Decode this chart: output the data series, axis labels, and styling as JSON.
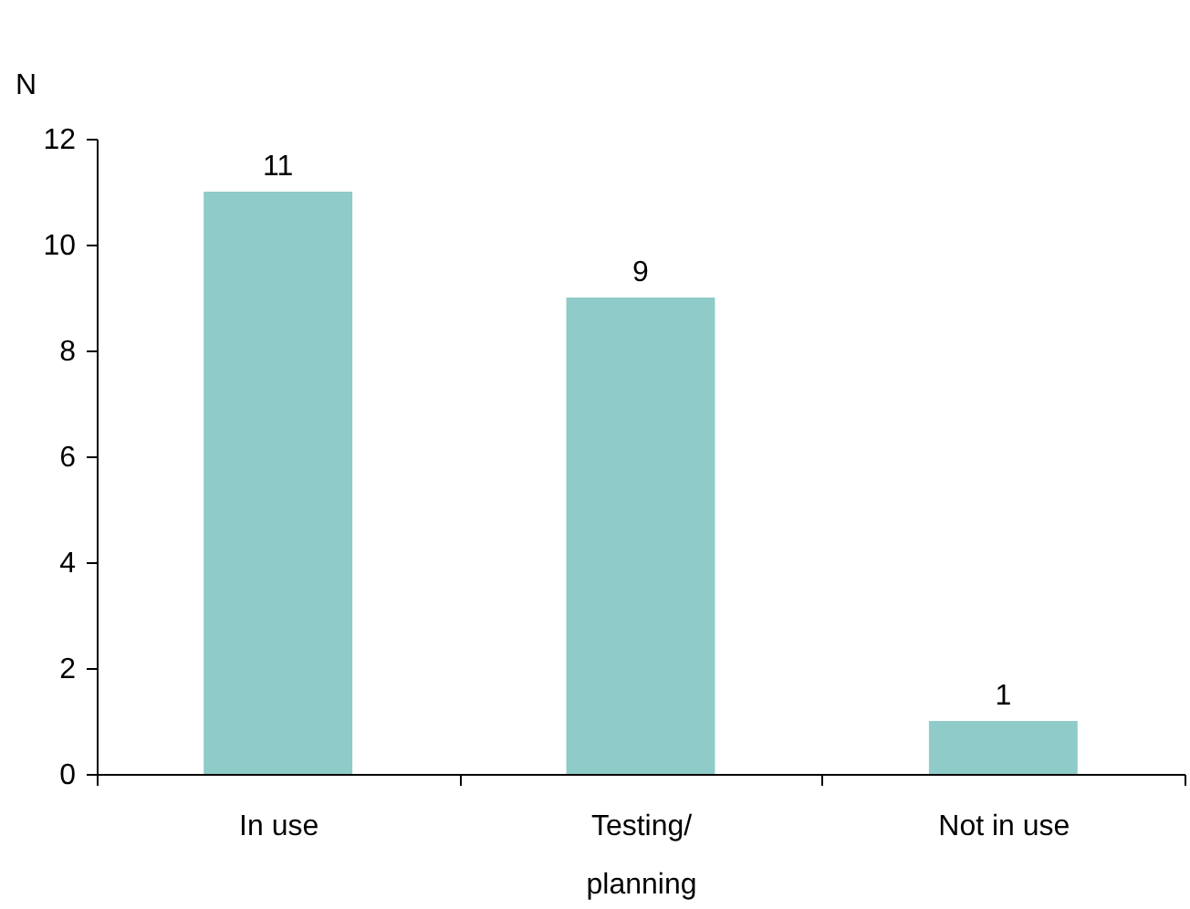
{
  "chart_data": {
    "type": "bar",
    "ylabel": "N",
    "categories": [
      "In use",
      "Testing/\nplanning",
      "Not in use"
    ],
    "values": [
      11,
      9,
      1
    ],
    "color": "#8fcbc8",
    "ylim": [
      0,
      12
    ],
    "yticks": [
      0,
      2,
      4,
      6,
      8,
      10,
      12
    ],
    "grid": false,
    "data_labels": true
  }
}
